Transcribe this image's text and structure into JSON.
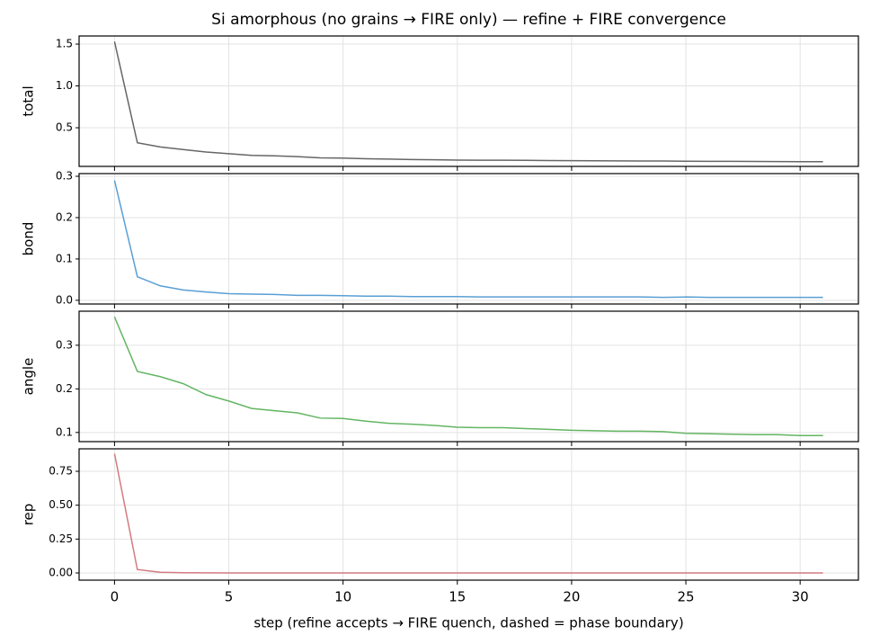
{
  "chart_data": [
    {
      "type": "line",
      "title": "Si amorphous (no grains → FIRE only) — refine + FIRE convergence",
      "ylabel": "total",
      "color": "#666666",
      "grid": true,
      "x": [
        0,
        1,
        2,
        3,
        4,
        5,
        6,
        7,
        8,
        9,
        10,
        11,
        12,
        13,
        14,
        15,
        16,
        17,
        18,
        19,
        20,
        21,
        22,
        23,
        24,
        25,
        26,
        27,
        28,
        29,
        30,
        31
      ],
      "values": [
        1.53,
        0.32,
        0.27,
        0.24,
        0.21,
        0.19,
        0.17,
        0.165,
        0.155,
        0.14,
        0.138,
        0.13,
        0.125,
        0.12,
        0.117,
        0.113,
        0.112,
        0.112,
        0.11,
        0.108,
        0.106,
        0.105,
        0.104,
        0.103,
        0.102,
        0.1,
        0.099,
        0.098,
        0.097,
        0.096,
        0.095,
        0.095
      ],
      "xlim": [
        -1.55,
        32.55
      ],
      "xticks": [
        0,
        5,
        10,
        15,
        20,
        25,
        30
      ],
      "ylim": [
        0.038,
        1.597
      ],
      "yticks": [
        0.5,
        {
          "value": 1,
          "label": "1.0"
        },
        1.5
      ]
    },
    {
      "type": "line",
      "ylabel": "bond",
      "color": "#5a9fd4",
      "grid": true,
      "x": [
        0,
        1,
        2,
        3,
        4,
        5,
        6,
        7,
        8,
        9,
        10,
        11,
        12,
        13,
        14,
        15,
        16,
        17,
        18,
        19,
        20,
        21,
        22,
        23,
        24,
        25,
        26,
        27,
        28,
        29,
        30,
        31
      ],
      "values": [
        0.29,
        0.057,
        0.035,
        0.025,
        0.02,
        0.016,
        0.015,
        0.014,
        0.012,
        0.012,
        0.011,
        0.01,
        0.01,
        0.009,
        0.009,
        0.009,
        0.008,
        0.008,
        0.008,
        0.008,
        0.008,
        0.008,
        0.008,
        0.008,
        0.007,
        0.008,
        0.007,
        0.007,
        0.007,
        0.007,
        0.007,
        0.007
      ],
      "xlim": [
        -1.55,
        32.55
      ],
      "xticks": [
        0,
        5,
        10,
        15,
        20,
        25,
        30
      ],
      "ylim": [
        -0.009,
        0.3065
      ],
      "yticks": [
        {
          "value": 0,
          "label": "0.0"
        },
        0.1,
        0.2,
        0.3
      ]
    },
    {
      "type": "line",
      "ylabel": "angle",
      "color": "#63b563",
      "grid": true,
      "x": [
        0,
        1,
        2,
        3,
        4,
        5,
        6,
        7,
        8,
        9,
        10,
        11,
        12,
        13,
        14,
        15,
        16,
        17,
        18,
        19,
        20,
        21,
        22,
        23,
        24,
        25,
        26,
        27,
        28,
        29,
        30,
        31
      ],
      "values": [
        0.365,
        0.24,
        0.228,
        0.212,
        0.187,
        0.172,
        0.155,
        0.15,
        0.145,
        0.133,
        0.132,
        0.126,
        0.121,
        0.119,
        0.116,
        0.112,
        0.111,
        0.111,
        0.109,
        0.107,
        0.105,
        0.104,
        0.103,
        0.103,
        0.102,
        0.098,
        0.097,
        0.096,
        0.095,
        0.095,
        0.093,
        0.093
      ],
      "xlim": [
        -1.55,
        32.55
      ],
      "xticks": [
        0,
        5,
        10,
        15,
        20,
        25,
        30
      ],
      "ylim": [
        0.079,
        0.378
      ],
      "yticks": [
        0.1,
        0.2,
        0.3
      ]
    },
    {
      "type": "line",
      "ylabel": "rep",
      "xlabel": "step  (refine accepts → FIRE quench, dashed = phase boundary)",
      "color": "#d47a80",
      "grid": true,
      "x": [
        0,
        1,
        2,
        3,
        4,
        5,
        6,
        7,
        8,
        9,
        10,
        11,
        12,
        13,
        14,
        15,
        16,
        17,
        18,
        19,
        20,
        21,
        22,
        23,
        24,
        25,
        26,
        27,
        28,
        29,
        30,
        31
      ],
      "values": [
        0.88,
        0.025,
        0.005,
        0.002,
        0.001,
        0,
        0,
        0,
        0,
        0,
        0,
        0,
        0,
        0,
        0,
        0,
        0,
        0,
        0,
        0,
        0,
        0,
        0,
        0,
        0,
        0,
        0,
        0,
        0,
        0,
        0,
        0
      ],
      "xlim": [
        -1.55,
        32.55
      ],
      "xticks": [
        0,
        5,
        10,
        15,
        20,
        25,
        30
      ],
      "ylim": [
        -0.053,
        0.916
      ],
      "yticks": [
        {
          "value": 0,
          "label": "0.00"
        },
        0.25,
        {
          "value": 0.5,
          "label": "0.50"
        },
        0.75
      ]
    }
  ]
}
